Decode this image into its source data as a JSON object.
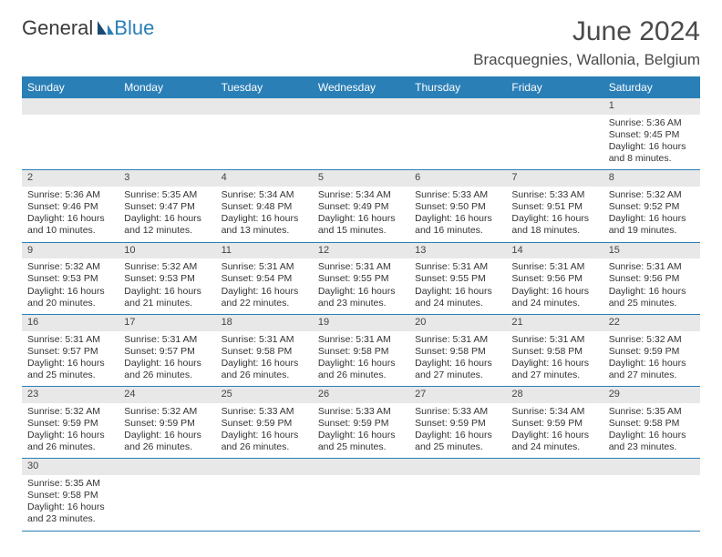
{
  "logo": {
    "textDark": "General",
    "textBlue": "Blue"
  },
  "title": "June 2024",
  "location": "Bracquegnies, Wallonia, Belgium",
  "colors": {
    "header_bg": "#2a7fb7",
    "header_text": "#ffffff",
    "daynum_bg": "#e8e8e8",
    "cell_border": "#2a7fb7",
    "page_bg": "#ffffff",
    "text": "#333333"
  },
  "typography": {
    "title_fontsize": 30,
    "location_fontsize": 17,
    "dayheader_fontsize": 12,
    "body_fontsize": 10.5
  },
  "dayHeaders": [
    "Sunday",
    "Monday",
    "Tuesday",
    "Wednesday",
    "Thursday",
    "Friday",
    "Saturday"
  ],
  "weeks": [
    [
      {
        "num": "",
        "sunrise": "",
        "sunset": "",
        "daylight": ""
      },
      {
        "num": "",
        "sunrise": "",
        "sunset": "",
        "daylight": ""
      },
      {
        "num": "",
        "sunrise": "",
        "sunset": "",
        "daylight": ""
      },
      {
        "num": "",
        "sunrise": "",
        "sunset": "",
        "daylight": ""
      },
      {
        "num": "",
        "sunrise": "",
        "sunset": "",
        "daylight": ""
      },
      {
        "num": "",
        "sunrise": "",
        "sunset": "",
        "daylight": ""
      },
      {
        "num": "1",
        "sunrise": "Sunrise: 5:36 AM",
        "sunset": "Sunset: 9:45 PM",
        "daylight": "Daylight: 16 hours and 8 minutes."
      }
    ],
    [
      {
        "num": "2",
        "sunrise": "Sunrise: 5:36 AM",
        "sunset": "Sunset: 9:46 PM",
        "daylight": "Daylight: 16 hours and 10 minutes."
      },
      {
        "num": "3",
        "sunrise": "Sunrise: 5:35 AM",
        "sunset": "Sunset: 9:47 PM",
        "daylight": "Daylight: 16 hours and 12 minutes."
      },
      {
        "num": "4",
        "sunrise": "Sunrise: 5:34 AM",
        "sunset": "Sunset: 9:48 PM",
        "daylight": "Daylight: 16 hours and 13 minutes."
      },
      {
        "num": "5",
        "sunrise": "Sunrise: 5:34 AM",
        "sunset": "Sunset: 9:49 PM",
        "daylight": "Daylight: 16 hours and 15 minutes."
      },
      {
        "num": "6",
        "sunrise": "Sunrise: 5:33 AM",
        "sunset": "Sunset: 9:50 PM",
        "daylight": "Daylight: 16 hours and 16 minutes."
      },
      {
        "num": "7",
        "sunrise": "Sunrise: 5:33 AM",
        "sunset": "Sunset: 9:51 PM",
        "daylight": "Daylight: 16 hours and 18 minutes."
      },
      {
        "num": "8",
        "sunrise": "Sunrise: 5:32 AM",
        "sunset": "Sunset: 9:52 PM",
        "daylight": "Daylight: 16 hours and 19 minutes."
      }
    ],
    [
      {
        "num": "9",
        "sunrise": "Sunrise: 5:32 AM",
        "sunset": "Sunset: 9:53 PM",
        "daylight": "Daylight: 16 hours and 20 minutes."
      },
      {
        "num": "10",
        "sunrise": "Sunrise: 5:32 AM",
        "sunset": "Sunset: 9:53 PM",
        "daylight": "Daylight: 16 hours and 21 minutes."
      },
      {
        "num": "11",
        "sunrise": "Sunrise: 5:31 AM",
        "sunset": "Sunset: 9:54 PM",
        "daylight": "Daylight: 16 hours and 22 minutes."
      },
      {
        "num": "12",
        "sunrise": "Sunrise: 5:31 AM",
        "sunset": "Sunset: 9:55 PM",
        "daylight": "Daylight: 16 hours and 23 minutes."
      },
      {
        "num": "13",
        "sunrise": "Sunrise: 5:31 AM",
        "sunset": "Sunset: 9:55 PM",
        "daylight": "Daylight: 16 hours and 24 minutes."
      },
      {
        "num": "14",
        "sunrise": "Sunrise: 5:31 AM",
        "sunset": "Sunset: 9:56 PM",
        "daylight": "Daylight: 16 hours and 24 minutes."
      },
      {
        "num": "15",
        "sunrise": "Sunrise: 5:31 AM",
        "sunset": "Sunset: 9:56 PM",
        "daylight": "Daylight: 16 hours and 25 minutes."
      }
    ],
    [
      {
        "num": "16",
        "sunrise": "Sunrise: 5:31 AM",
        "sunset": "Sunset: 9:57 PM",
        "daylight": "Daylight: 16 hours and 25 minutes."
      },
      {
        "num": "17",
        "sunrise": "Sunrise: 5:31 AM",
        "sunset": "Sunset: 9:57 PM",
        "daylight": "Daylight: 16 hours and 26 minutes."
      },
      {
        "num": "18",
        "sunrise": "Sunrise: 5:31 AM",
        "sunset": "Sunset: 9:58 PM",
        "daylight": "Daylight: 16 hours and 26 minutes."
      },
      {
        "num": "19",
        "sunrise": "Sunrise: 5:31 AM",
        "sunset": "Sunset: 9:58 PM",
        "daylight": "Daylight: 16 hours and 26 minutes."
      },
      {
        "num": "20",
        "sunrise": "Sunrise: 5:31 AM",
        "sunset": "Sunset: 9:58 PM",
        "daylight": "Daylight: 16 hours and 27 minutes."
      },
      {
        "num": "21",
        "sunrise": "Sunrise: 5:31 AM",
        "sunset": "Sunset: 9:58 PM",
        "daylight": "Daylight: 16 hours and 27 minutes."
      },
      {
        "num": "22",
        "sunrise": "Sunrise: 5:32 AM",
        "sunset": "Sunset: 9:59 PM",
        "daylight": "Daylight: 16 hours and 27 minutes."
      }
    ],
    [
      {
        "num": "23",
        "sunrise": "Sunrise: 5:32 AM",
        "sunset": "Sunset: 9:59 PM",
        "daylight": "Daylight: 16 hours and 26 minutes."
      },
      {
        "num": "24",
        "sunrise": "Sunrise: 5:32 AM",
        "sunset": "Sunset: 9:59 PM",
        "daylight": "Daylight: 16 hours and 26 minutes."
      },
      {
        "num": "25",
        "sunrise": "Sunrise: 5:33 AM",
        "sunset": "Sunset: 9:59 PM",
        "daylight": "Daylight: 16 hours and 26 minutes."
      },
      {
        "num": "26",
        "sunrise": "Sunrise: 5:33 AM",
        "sunset": "Sunset: 9:59 PM",
        "daylight": "Daylight: 16 hours and 25 minutes."
      },
      {
        "num": "27",
        "sunrise": "Sunrise: 5:33 AM",
        "sunset": "Sunset: 9:59 PM",
        "daylight": "Daylight: 16 hours and 25 minutes."
      },
      {
        "num": "28",
        "sunrise": "Sunrise: 5:34 AM",
        "sunset": "Sunset: 9:59 PM",
        "daylight": "Daylight: 16 hours and 24 minutes."
      },
      {
        "num": "29",
        "sunrise": "Sunrise: 5:35 AM",
        "sunset": "Sunset: 9:58 PM",
        "daylight": "Daylight: 16 hours and 23 minutes."
      }
    ],
    [
      {
        "num": "30",
        "sunrise": "Sunrise: 5:35 AM",
        "sunset": "Sunset: 9:58 PM",
        "daylight": "Daylight: 16 hours and 23 minutes."
      },
      {
        "num": "",
        "sunrise": "",
        "sunset": "",
        "daylight": ""
      },
      {
        "num": "",
        "sunrise": "",
        "sunset": "",
        "daylight": ""
      },
      {
        "num": "",
        "sunrise": "",
        "sunset": "",
        "daylight": ""
      },
      {
        "num": "",
        "sunrise": "",
        "sunset": "",
        "daylight": ""
      },
      {
        "num": "",
        "sunrise": "",
        "sunset": "",
        "daylight": ""
      },
      {
        "num": "",
        "sunrise": "",
        "sunset": "",
        "daylight": ""
      }
    ]
  ]
}
